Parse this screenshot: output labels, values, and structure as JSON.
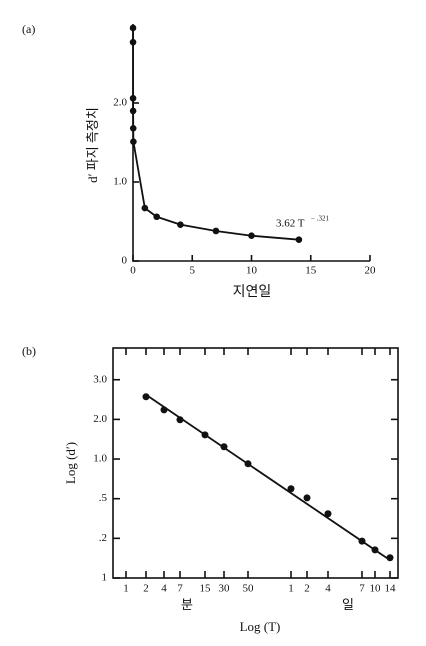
{
  "chart_data": [
    {
      "type": "line",
      "panel": "(a)",
      "xlabel": "지연일",
      "ylabel": "d′ 파지 측정치",
      "annotation": {
        "base": "3.62 T",
        "exponent": "− .321"
      },
      "x": [
        0.001,
        0.003,
        0.005,
        0.01,
        0.02,
        0.035,
        1,
        2,
        4,
        7,
        10,
        14
      ],
      "series": [
        {
          "color": "#111111",
          "values": [
            2.95,
            2.77,
            2.06,
            1.9,
            1.68,
            1.51,
            0.67,
            0.56,
            0.46,
            0.38,
            0.32,
            0.27
          ]
        }
      ],
      "xlim": [
        0,
        20
      ],
      "xticks": [
        0,
        5,
        10,
        15,
        20
      ],
      "ylim": [
        0,
        3.0
      ],
      "yticks": [
        0,
        {
          "value": 1,
          "label": "1.0"
        },
        {
          "value": 2,
          "label": "2.0"
        }
      ]
    },
    {
      "type": "scatter",
      "panel": "(b)",
      "xlabel": "Log (T)",
      "ylabel": "Log (d′)",
      "group_labels": [
        "분",
        "일"
      ],
      "categories": [
        "1",
        "2",
        "4",
        "7",
        "15",
        "30",
        "50",
        "1",
        "2",
        "4",
        "7",
        "10",
        "14"
      ],
      "series": [
        {
          "color": "#111111",
          "values": [
            null,
            4.57,
            4.24,
            3.99,
            3.61,
            3.31,
            2.88,
            2.25,
            2.02,
            1.62,
            0.93,
            0.71,
            0.51
          ]
        }
      ],
      "trend": [
        4.62,
        0.45
      ],
      "ylim": [
        0,
        5.8
      ],
      "yticks": [
        {
          "value": 5,
          "label": "3.0"
        },
        {
          "value": 4,
          "label": "2.0"
        },
        {
          "value": 3,
          "label": "1.0"
        },
        {
          "value": 2,
          "label": ".5"
        },
        {
          "value": 1,
          "label": ".2"
        },
        {
          "value": 0,
          "label": "1"
        }
      ]
    }
  ]
}
